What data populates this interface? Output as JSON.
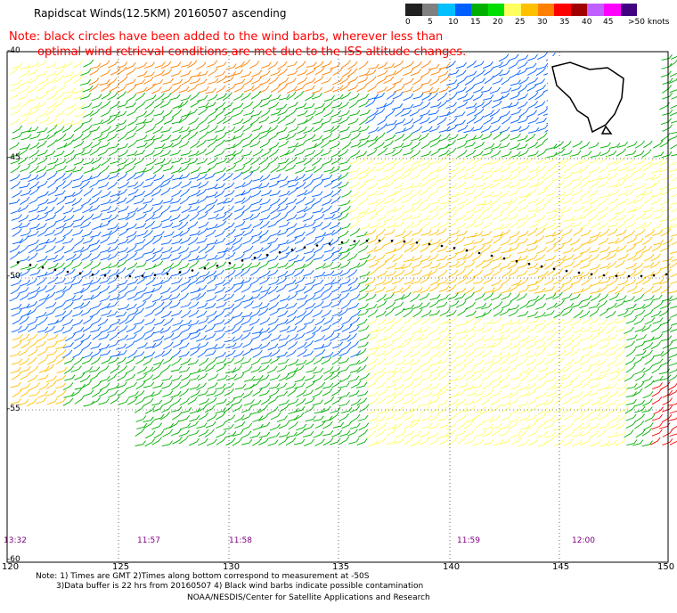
{
  "title": "Rapidscat Winds(12.5KM) 20160507 ascending",
  "note": {
    "line1": "Note: black circles have been added to the wind barbs, wherever less than",
    "line2": "optimal wind retrieval conditions are met due to the ISS altitude changes."
  },
  "color_scale": {
    "colors": [
      "#202020",
      "#808080",
      "#00c0ff",
      "#0060ff",
      "#00b000",
      "#00e000",
      "#ffff60",
      "#ffc000",
      "#ff8000",
      "#ff0000",
      "#a00000",
      "#c060ff",
      "#ff00ff",
      "#400080"
    ],
    "labels": [
      "0",
      "5",
      "10",
      "15",
      "20",
      "25",
      "30",
      "35",
      "40",
      "45",
      ">50 knots"
    ]
  },
  "axes": {
    "lat_labels": [
      "-40",
      "-45",
      "-50",
      "-55",
      "-60"
    ],
    "lon_labels": [
      "120",
      "125",
      "130",
      "135",
      "140",
      "145",
      "150"
    ]
  },
  "pass_times": [
    "13:32",
    "11:57",
    "11:58",
    "11:59",
    "12:00"
  ],
  "footer": {
    "line1": "Note: 1) Times are GMT 2)Times along bottom correspond to measurement at -50S",
    "line2": "3)Data buffer is 22 hrs from 20160507 4) Black wind barbs indicate possible contamination",
    "line3": "NOAA/NESDIS/Center for Satellite Applications and Research"
  }
}
